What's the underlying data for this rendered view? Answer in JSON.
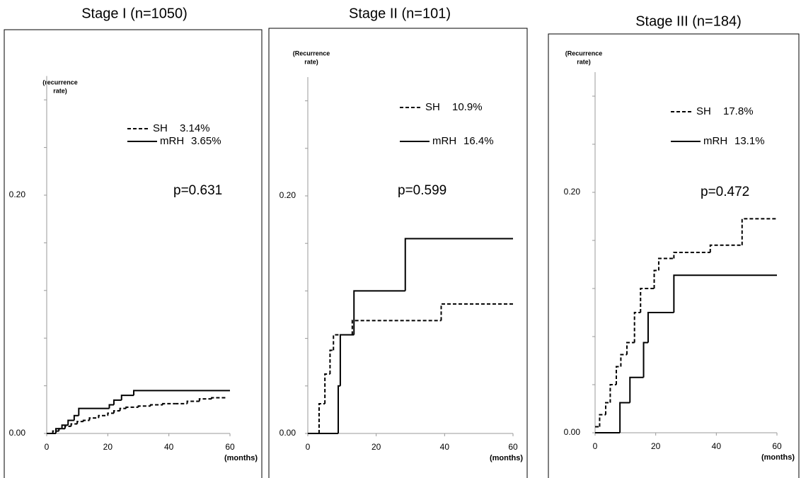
{
  "chart_data": [
    {
      "type": "line",
      "step": true,
      "title": "Stage I (n=1050)",
      "y_label": [
        "(recurrence",
        "rate)"
      ],
      "x_label": "(months)",
      "xlim": [
        0,
        60
      ],
      "xticks": [
        0,
        20,
        40,
        60
      ],
      "ylim": [
        0,
        0.3
      ],
      "yticks": [
        {
          "value": 0,
          "label": "0.00"
        },
        {
          "value": 0.2,
          "label": "0.20"
        }
      ],
      "y_minor_ticks": [
        0.04,
        0.08,
        0.12,
        0.16,
        0.24,
        0.28
      ],
      "annotation": "p=0.631",
      "series": [
        {
          "name": "SH",
          "label": "3.14%",
          "style": "dashed",
          "color": "#000000",
          "x": [
            0,
            2,
            4,
            6,
            8,
            10,
            12,
            14,
            17,
            20,
            22,
            24,
            26,
            30,
            34,
            38,
            42,
            46,
            50,
            54,
            59
          ],
          "values": [
            0,
            0.002,
            0.004,
            0.006,
            0.008,
            0.01,
            0.011,
            0.013,
            0.015,
            0.017,
            0.019,
            0.021,
            0.022,
            0.023,
            0.024,
            0.025,
            0.025,
            0.027,
            0.029,
            0.03,
            0.03
          ]
        },
        {
          "name": "mRH",
          "label": "3.65%",
          "style": "solid",
          "color": "#000000",
          "x": [
            0,
            3,
            5,
            7,
            9,
            10.5,
            20.5,
            22,
            24.5,
            28.5,
            60
          ],
          "values": [
            0,
            0.004,
            0.007,
            0.011,
            0.015,
            0.021,
            0.024,
            0.028,
            0.032,
            0.036,
            0.036
          ]
        }
      ]
    },
    {
      "type": "line",
      "step": true,
      "title": "Stage II (n=101)",
      "y_label": [
        "(Recurrence",
        "rate)"
      ],
      "x_label": "(months)",
      "xlim": [
        0,
        60
      ],
      "xticks": [
        0,
        20,
        40,
        60
      ],
      "ylim": [
        0,
        0.3
      ],
      "yticks": [
        {
          "value": 0,
          "label": "0.00"
        },
        {
          "value": 0.2,
          "label": "0.20"
        }
      ],
      "y_minor_ticks": [
        0.04,
        0.08,
        0.12,
        0.16,
        0.24,
        0.28
      ],
      "annotation": "p=0.599",
      "series": [
        {
          "name": "SH",
          "label": "10.9%",
          "style": "dashed",
          "color": "#000000",
          "x": [
            0,
            3.3,
            5,
            6.5,
            7.5,
            13,
            39,
            60
          ],
          "values": [
            0,
            0.025,
            0.05,
            0.07,
            0.083,
            0.095,
            0.109,
            0.109
          ]
        },
        {
          "name": "mRH",
          "label": "16.4%",
          "style": "solid",
          "color": "#000000",
          "x": [
            0,
            8.9,
            9.5,
            13.5,
            28.5,
            60
          ],
          "values": [
            0,
            0.04,
            0.083,
            0.12,
            0.164,
            0.164
          ]
        }
      ]
    },
    {
      "type": "line",
      "step": true,
      "title": "Stage III (n=184)",
      "y_label": [
        "(Recurrence",
        "rate)"
      ],
      "x_label": "(months)",
      "xlim": [
        0,
        60
      ],
      "xticks": [
        0,
        20,
        40,
        60
      ],
      "ylim": [
        0,
        0.3
      ],
      "yticks": [
        {
          "value": 0,
          "label": "0.00"
        },
        {
          "value": 0.2,
          "label": "0.20"
        }
      ],
      "y_minor_ticks": [
        0.04,
        0.08,
        0.12,
        0.16,
        0.24,
        0.28
      ],
      "annotation": "p=0.472",
      "series": [
        {
          "name": "SH",
          "label": "17.8%",
          "style": "dashed",
          "color": "#000000",
          "x": [
            0,
            1.5,
            3.5,
            5,
            7,
            8.5,
            10.5,
            13,
            15,
            19.5,
            21,
            26,
            38,
            48.5,
            60
          ],
          "values": [
            0.005,
            0.015,
            0.025,
            0.04,
            0.055,
            0.065,
            0.075,
            0.1,
            0.12,
            0.135,
            0.145,
            0.15,
            0.156,
            0.178,
            0.178
          ]
        },
        {
          "name": "mRH",
          "label": "13.1%",
          "style": "solid",
          "color": "#000000",
          "x": [
            0,
            8.2,
            11.5,
            16,
            17.5,
            26,
            60
          ],
          "values": [
            0,
            0.025,
            0.046,
            0.075,
            0.1,
            0.131,
            0.131
          ]
        }
      ]
    }
  ]
}
